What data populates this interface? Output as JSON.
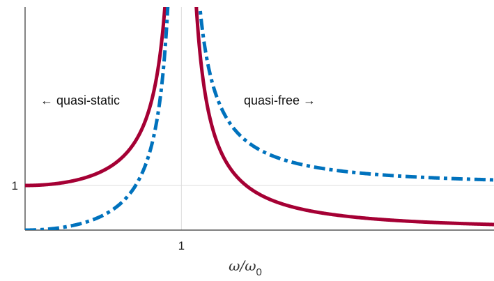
{
  "chart_data": {
    "type": "line",
    "title": "",
    "xlabel": "ω/ω",
    "xlabel_subscript": "0",
    "ylabel": "",
    "xlim": [
      0,
      3
    ],
    "ylim": [
      0,
      5
    ],
    "x_ticks": [
      {
        "value": 1,
        "label": "1"
      }
    ],
    "y_ticks": [
      {
        "value": 1,
        "label": "1"
      }
    ],
    "reference_lines": {
      "x": 1,
      "y": 1
    },
    "grid": false,
    "legend": "none",
    "annotations": [
      {
        "text": "← quasi-static"
      },
      {
        "text": "quasi-free →"
      }
    ],
    "series": [
      {
        "style": "solid",
        "color": "#a50034",
        "x": [
          0,
          0.2,
          0.4,
          0.6,
          0.7,
          0.8,
          0.9,
          1.1,
          1.2,
          1.4,
          1.6,
          2.0,
          2.5,
          3.0
        ],
        "y": [
          1,
          1.04,
          1.19,
          1.56,
          1.96,
          2.78,
          5.26,
          4.76,
          2.27,
          1.04,
          0.64,
          0.33,
          0.19,
          0.125
        ]
      },
      {
        "style": "dashdot",
        "color": "#0072bd",
        "x": [
          0,
          0.2,
          0.4,
          0.6,
          0.7,
          0.8,
          0.9,
          1.1,
          1.2,
          1.4,
          1.6,
          2.0,
          2.5,
          3.0
        ],
        "y": [
          0,
          0.04,
          0.19,
          0.56,
          0.96,
          1.78,
          4.26,
          5.76,
          3.27,
          2.04,
          1.64,
          1.33,
          1.19,
          1.125
        ]
      }
    ]
  }
}
